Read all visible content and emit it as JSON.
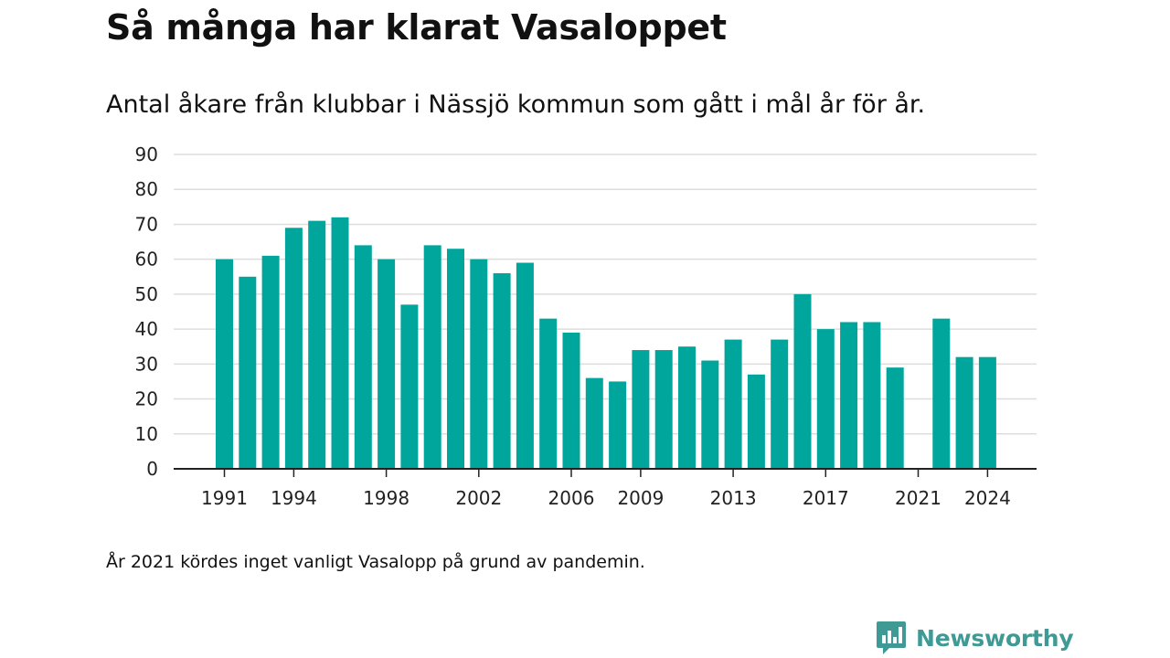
{
  "title": "Så många har klarat Vasaloppet",
  "subtitle": "Antal åkare från klubbar i Nässjö kommun som gått i mål år för år.",
  "footnote": "År 2021 kördes inget vanligt Vasalopp på grund av pandemin.",
  "brand": {
    "name": "Newsworthy",
    "logo_icon": "bar-chart-speech-bubble-icon"
  },
  "colors": {
    "bar": "#00a69c",
    "grid": "#dddddd",
    "axis": "#222222",
    "brand": "#3f9a95"
  },
  "chart_data": {
    "type": "bar",
    "x": [
      1991,
      1992,
      1993,
      1994,
      1995,
      1996,
      1997,
      1998,
      1999,
      2000,
      2001,
      2002,
      2003,
      2004,
      2005,
      2006,
      2007,
      2008,
      2009,
      2010,
      2011,
      2012,
      2013,
      2014,
      2015,
      2016,
      2017,
      2018,
      2019,
      2020,
      2021,
      2022,
      2023,
      2024
    ],
    "values": [
      60,
      55,
      61,
      69,
      71,
      72,
      64,
      60,
      47,
      64,
      63,
      60,
      56,
      59,
      43,
      39,
      26,
      25,
      34,
      34,
      35,
      31,
      37,
      27,
      37,
      50,
      40,
      42,
      42,
      29,
      0,
      43,
      32,
      32
    ],
    "x_ticks": [
      "1991",
      "1994",
      "1998",
      "2002",
      "2006",
      "2009",
      "2013",
      "2017",
      "2021",
      "2024"
    ],
    "y_ticks": [
      "0",
      "10",
      "20",
      "30",
      "40",
      "50",
      "60",
      "70",
      "80",
      "90"
    ],
    "ylim": [
      0,
      90
    ],
    "grid": true,
    "legend": "none",
    "title": "Så många har klarat Vasaloppet",
    "subtitle": "Antal åkare från klubbar i Nässjö kommun som gått i mål år för år.",
    "xlabel": "",
    "ylabel": ""
  }
}
